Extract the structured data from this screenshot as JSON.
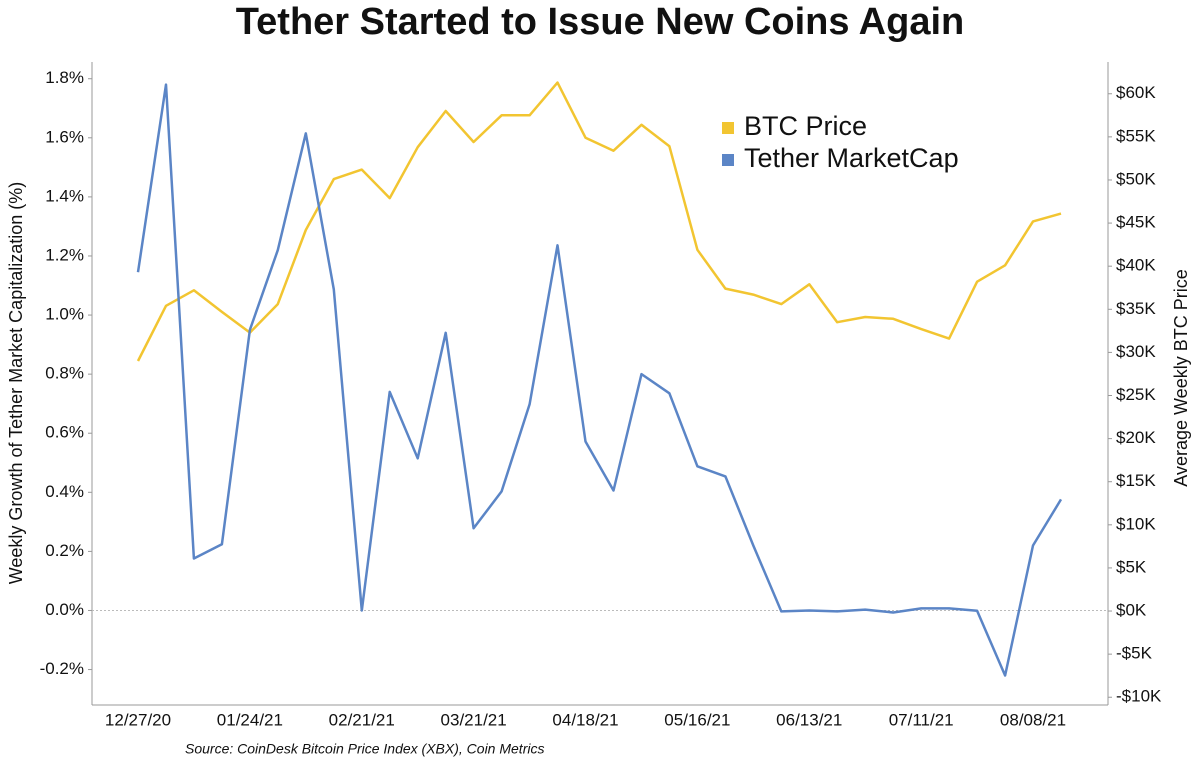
{
  "chart_data": {
    "type": "line",
    "title": "Tether Started to Issue New Coins Again",
    "ylabel": "Weekly Growth of Tether Market Capitalization (%)",
    "y2label": "Average Weekly BTC Price",
    "source": "Source: CoinDesk Bitcoin Price Index (XBX), Coin Metrics",
    "categories": [
      "12/27/20",
      null,
      null,
      null,
      "01/24/21",
      null,
      null,
      null,
      "02/21/21",
      null,
      null,
      null,
      "03/21/21",
      null,
      null,
      null,
      "04/18/21",
      null,
      null,
      null,
      "05/16/21",
      null,
      null,
      null,
      "06/13/21",
      null,
      null,
      null,
      "07/11/21",
      null,
      null,
      null,
      "08/08/21",
      null
    ],
    "series": [
      {
        "name": "BTC Price",
        "color": "#f2c531",
        "axis": "y2",
        "values": [
          29000,
          35400,
          37200,
          34700,
          32300,
          35600,
          44200,
          50100,
          51200,
          47900,
          53800,
          58000,
          54400,
          57500,
          57500,
          61300,
          54900,
          53400,
          56400,
          53900,
          41900,
          37400,
          36700,
          35600,
          37900,
          33500,
          34100,
          33900,
          32700,
          31600,
          38200,
          40100,
          45200,
          46100
        ]
      },
      {
        "name": "Tether MarketCap",
        "color": "#5b85c6",
        "values": [
          1.145,
          1.78,
          0.176,
          0.224,
          0.95,
          1.22,
          1.615,
          1.087,
          0.0,
          0.74,
          0.515,
          0.94,
          0.278,
          0.403,
          0.698,
          1.236,
          0.572,
          0.406,
          0.8,
          0.735,
          0.488,
          0.454,
          0.22,
          -0.003,
          0.0,
          -0.003,
          0.003,
          -0.007,
          0.007,
          0.007,
          -0.001,
          -0.22,
          0.22,
          0.376
        ]
      }
    ],
    "ylim": [
      -0.32,
      1.86
    ],
    "yticks": [
      {
        "value": -0.2,
        "label": "-0.2%"
      },
      {
        "value": 0,
        "label": "0.0%"
      },
      {
        "value": 0.2,
        "label": "0.2%"
      },
      {
        "value": 0.4,
        "label": "0.4%"
      },
      {
        "value": 0.6,
        "label": "0.6%"
      },
      {
        "value": 0.8,
        "label": "0.8%"
      },
      {
        "value": 1.0,
        "label": "1.0%"
      },
      {
        "value": 1.2,
        "label": "1.2%"
      },
      {
        "value": 1.4,
        "label": "1.4%"
      },
      {
        "value": 1.6,
        "label": "1.6%"
      },
      {
        "value": 1.8,
        "label": "1.8%"
      }
    ],
    "y2lim": [
      -10900,
      63800
    ],
    "y2ticks": [
      {
        "value": -10000,
        "label": "-$10K"
      },
      {
        "value": -5000,
        "label": "-$5K"
      },
      {
        "value": 0,
        "label": "$0K"
      },
      {
        "value": 5000,
        "label": "$5K"
      },
      {
        "value": 10000,
        "label": "$10K"
      },
      {
        "value": 15000,
        "label": "$15K"
      },
      {
        "value": 20000,
        "label": "$20K"
      },
      {
        "value": 25000,
        "label": "$25K"
      },
      {
        "value": 30000,
        "label": "$30K"
      },
      {
        "value": 35000,
        "label": "$35K"
      },
      {
        "value": 40000,
        "label": "$40K"
      },
      {
        "value": 45000,
        "label": "$45K"
      },
      {
        "value": 50000,
        "label": "$50K"
      },
      {
        "value": 55000,
        "label": "$55K"
      },
      {
        "value": 60000,
        "label": "$60K"
      }
    ],
    "zero_line": true,
    "legend": "top-right"
  }
}
